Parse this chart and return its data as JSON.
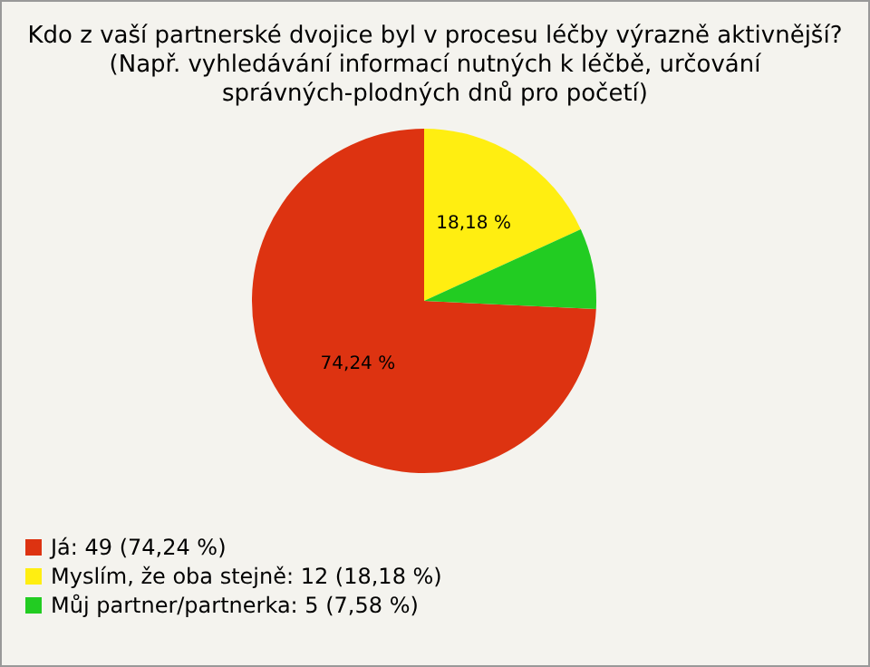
{
  "chart_data": {
    "type": "pie",
    "title": "Kdo z vaší partnerské dvojice byl v procesu léčby výrazně aktivnější?\n(Např. vyhledávání informací nutných k léčbě, určování\nsprávných-plodných dnů pro početí)",
    "categories": [
      "Já: 49 (74,24 %)",
      "Myslím, že oba stejně: 12 (18,18 %)",
      "Můj partner/partnerka: 5 (7,58 %)"
    ],
    "values": [
      74.24,
      18.18,
      7.58
    ],
    "colors": [
      "#dd3311",
      "#ffee11",
      "#22cc22"
    ],
    "value_labels": [
      "74,24 %",
      "18,18 %",
      null
    ],
    "legend": "bottom left"
  }
}
